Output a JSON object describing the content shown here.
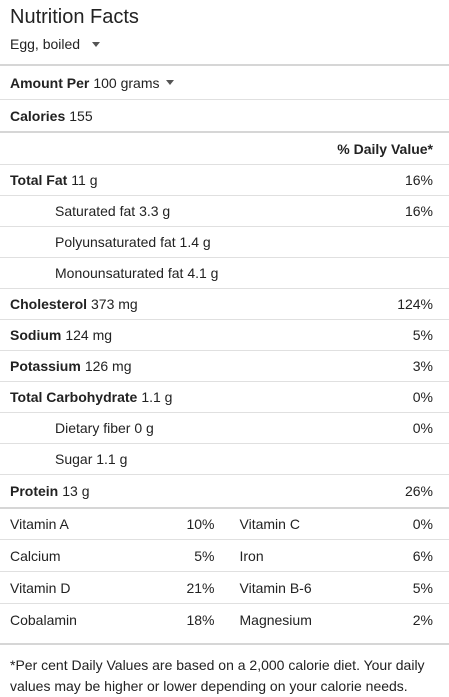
{
  "header": {
    "title": "Nutrition Facts",
    "food": "Egg, boiled"
  },
  "amount": {
    "label": "Amount Per",
    "value": "100 grams"
  },
  "calories": {
    "label": "Calories",
    "value": "155"
  },
  "dv_header": "% Daily Value*",
  "nutrients": [
    {
      "label": "Total Fat",
      "amount": "11 g",
      "dv": "16%"
    },
    {
      "label": "Saturated fat",
      "amount": "3.3 g",
      "dv": "16%"
    },
    {
      "label": "Polyunsaturated fat",
      "amount": "1.4 g",
      "dv": ""
    },
    {
      "label": "Monounsaturated fat",
      "amount": "4.1 g",
      "dv": ""
    },
    {
      "label": "Cholesterol",
      "amount": "373 mg",
      "dv": "124%"
    },
    {
      "label": "Sodium",
      "amount": "124 mg",
      "dv": "5%"
    },
    {
      "label": "Potassium",
      "amount": "126 mg",
      "dv": "3%"
    },
    {
      "label": "Total Carbohydrate",
      "amount": "1.1 g",
      "dv": "0%"
    },
    {
      "label": "Dietary fiber",
      "amount": "0 g",
      "dv": "0%"
    },
    {
      "label": "Sugar",
      "amount": "1.1 g",
      "dv": ""
    },
    {
      "label": "Protein",
      "amount": "13 g",
      "dv": "26%"
    }
  ],
  "vitamins": [
    {
      "name": "Vitamin A",
      "dv": "10%"
    },
    {
      "name": "Vitamin C",
      "dv": "0%"
    },
    {
      "name": "Calcium",
      "dv": "5%"
    },
    {
      "name": "Iron",
      "dv": "6%"
    },
    {
      "name": "Vitamin D",
      "dv": "21%"
    },
    {
      "name": "Vitamin B-6",
      "dv": "5%"
    },
    {
      "name": "Cobalamin",
      "dv": "18%"
    },
    {
      "name": "Magnesium",
      "dv": "2%"
    }
  ],
  "footnote": "*Per cent Daily Values are based on a 2,000 calorie diet. Your daily values may be higher or lower depending on your calorie needs."
}
